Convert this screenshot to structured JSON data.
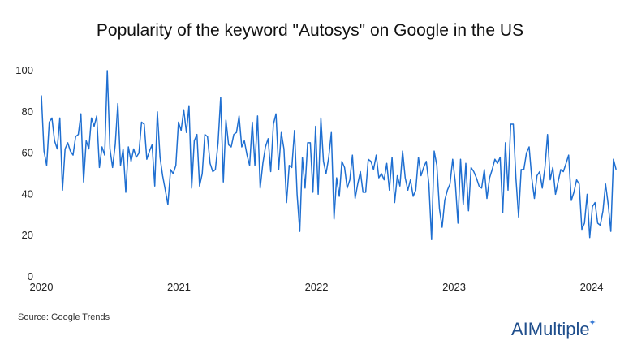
{
  "title": "Popularity of the keyword \"Autosys\" on Google in the US",
  "source": "Source: Google Trends",
  "brand": {
    "prefix": "AI",
    "name": "Multiple",
    "color": "#1f4e8c"
  },
  "chart_data": {
    "type": "line",
    "title": "Popularity of the keyword \"Autosys\" on Google in the US",
    "xlabel": "",
    "ylabel": "",
    "x_ticks": [
      "2020",
      "2021",
      "2022",
      "2023",
      "2024"
    ],
    "x_range": [
      2020.0,
      2024.1
    ],
    "y_ticks": [
      0,
      20,
      40,
      60,
      80,
      100
    ],
    "ylim": [
      0,
      100
    ],
    "grid": false,
    "legend": "none",
    "series": [
      {
        "color": "#1f6fd1",
        "frequency": "weekly",
        "start": "2020",
        "values": [
          88,
          61,
          54,
          75,
          77,
          66,
          62,
          77,
          42,
          62,
          65,
          61,
          59,
          68,
          69,
          79,
          46,
          66,
          62,
          77,
          73,
          78,
          53,
          63,
          59,
          100,
          62,
          53,
          64,
          84,
          54,
          62,
          41,
          63,
          56,
          62,
          58,
          60,
          75,
          74,
          57,
          61,
          64,
          44,
          80,
          58,
          49,
          42,
          35,
          52,
          50,
          54,
          75,
          71,
          81,
          70,
          83,
          43,
          66,
          69,
          44,
          50,
          69,
          68,
          55,
          51,
          52,
          65,
          87,
          46,
          76,
          64,
          63,
          69,
          70,
          78,
          63,
          66,
          59,
          54,
          75,
          54,
          78,
          43,
          55,
          63,
          67,
          51,
          74,
          79,
          52,
          70,
          62,
          36,
          54,
          53,
          71,
          40,
          22,
          58,
          43,
          65,
          65,
          41,
          73,
          40,
          77,
          56,
          50,
          58,
          70,
          28,
          48,
          39,
          56,
          53,
          43,
          47,
          59,
          38,
          45,
          51,
          41,
          41,
          57,
          56,
          52,
          59,
          48,
          50,
          47,
          55,
          42,
          58,
          36,
          49,
          44,
          61,
          48,
          42,
          47,
          39,
          42,
          58,
          49,
          53,
          56,
          45,
          18,
          61,
          54,
          33,
          24,
          37,
          42,
          45,
          57,
          46,
          26,
          57,
          35,
          55,
          32,
          53,
          51,
          48,
          44,
          43,
          52,
          38,
          48,
          52,
          57,
          55,
          58,
          31,
          65,
          42,
          74,
          74,
          48,
          29,
          52,
          52,
          60,
          63,
          48,
          38,
          49,
          51,
          43,
          53,
          69,
          47,
          53,
          40,
          46,
          52,
          51,
          55,
          59,
          37,
          41,
          47,
          45,
          23,
          26,
          40,
          19,
          34,
          36,
          26,
          25,
          32,
          45,
          35,
          22,
          57,
          52
        ]
      }
    ]
  }
}
